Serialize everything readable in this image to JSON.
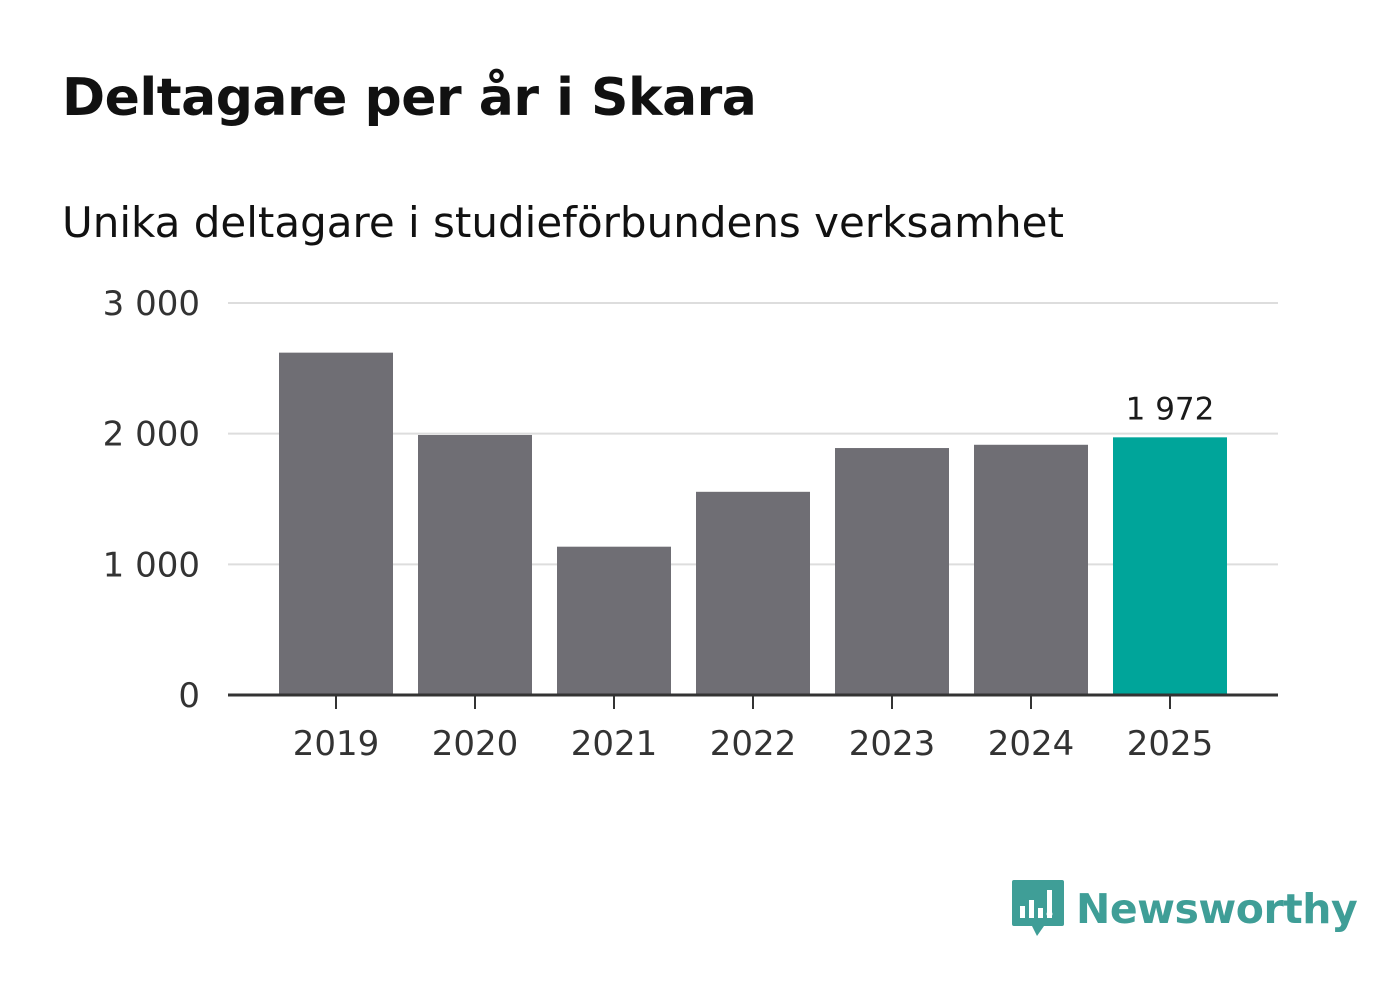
{
  "colors": {
    "bar": "#6f6e74",
    "highlight": "#00a59a",
    "grid": "#dddddd",
    "axis": "#333333",
    "brand": "#3f9e97"
  },
  "brand": {
    "name": "Newsworthy",
    "icon": "bar-chart-speech-bubble-icon"
  },
  "chart_data": {
    "type": "bar",
    "title": "Deltagare per år i Skara",
    "subtitle": "Unika deltagare i studieförbundens verksamhet",
    "categories": [
      "2019",
      "2020",
      "2021",
      "2022",
      "2023",
      "2024",
      "2025"
    ],
    "values": [
      2620,
      1990,
      1135,
      1555,
      1890,
      1915,
      1972
    ],
    "highlight_index": 6,
    "highlight_label": "1 972",
    "ylim": [
      0,
      3000
    ],
    "yticks": [
      0,
      1000,
      2000,
      3000
    ],
    "ytick_labels": [
      "0",
      "1 000",
      "2 000",
      "3 000"
    ],
    "xlabel": "",
    "ylabel": "",
    "grid": true
  }
}
